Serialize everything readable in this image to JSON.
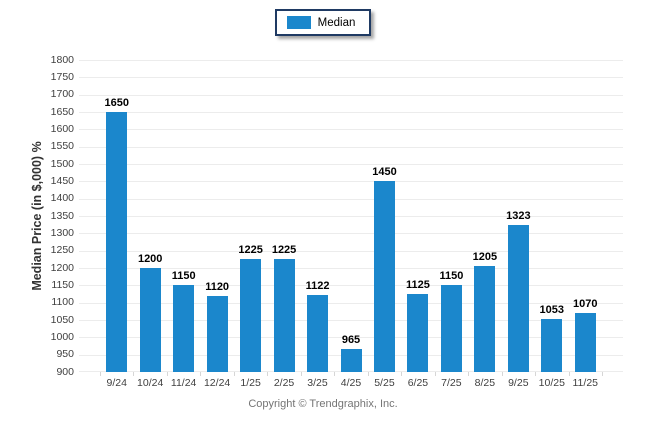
{
  "legend": {
    "items": [
      {
        "label": "Median",
        "color": "#1b87cc"
      }
    ]
  },
  "chart_data": {
    "type": "bar",
    "categories": [
      "9/24",
      "10/24",
      "11/24",
      "12/24",
      "1/25",
      "2/25",
      "3/25",
      "4/25",
      "5/25",
      "6/25",
      "7/25",
      "8/25",
      "9/25",
      "10/25",
      "11/25"
    ],
    "series": [
      {
        "name": "Median",
        "color": "#1b87cc",
        "values": [
          1650,
          1200,
          1150,
          1120,
          1225,
          1225,
          1122,
          965,
          1450,
          1125,
          1150,
          1205,
          1323,
          1053,
          1070
        ]
      }
    ],
    "title": "",
    "xlabel": "",
    "ylabel": "Median Price (in $,000) %",
    "ylim": [
      900,
      1800
    ],
    "ytick_step": 50,
    "grid": true,
    "legend_position": "top-center",
    "value_labels": true
  },
  "footer": {
    "copyright": "Copyright © Trendgraphix, Inc."
  },
  "colors": {
    "bar": "#1b87cc",
    "gridline": "#ececec",
    "axis_text": "#404040",
    "value_label": "#000000",
    "legend_border": "#1f3a63",
    "footer_text": "#757575"
  }
}
